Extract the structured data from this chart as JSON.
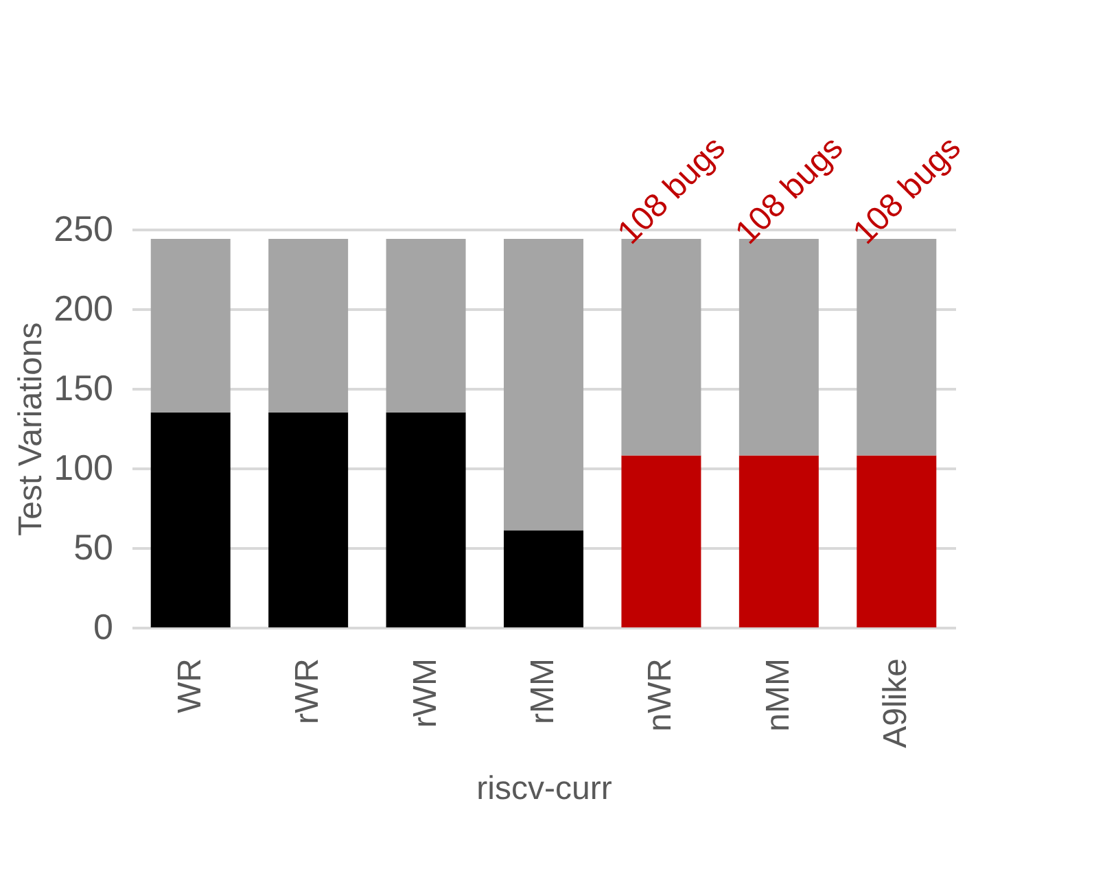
{
  "chart_data": {
    "type": "bar",
    "stacked": true,
    "ylabel": "Test Variations",
    "xlabel": "riscv-curr",
    "categories": [
      "WR",
      "rWR",
      "rWM",
      "rMM",
      "nWR",
      "nMM",
      "A9like"
    ],
    "series": [
      {
        "colors": [
          "#000000",
          "#000000",
          "#000000",
          "#000000",
          "#c00000",
          "#c00000",
          "#c00000"
        ],
        "values": [
          135,
          135,
          135,
          61,
          108,
          108,
          108
        ]
      },
      {
        "color": "#a5a5a5",
        "values": [
          109,
          109,
          109,
          183,
          136,
          136,
          136
        ]
      }
    ],
    "ylim": [
      0,
      250
    ],
    "yticks": [
      0,
      50,
      100,
      150,
      200,
      250
    ],
    "grid": "y",
    "annotations": [
      "108 bugs",
      "108 bugs",
      "108 bugs"
    ]
  }
}
